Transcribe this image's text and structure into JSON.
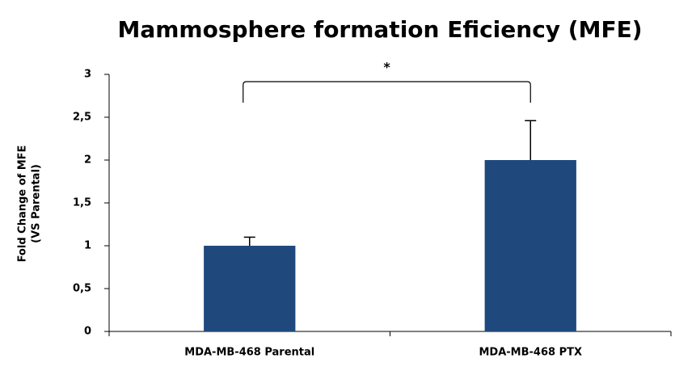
{
  "chart_data": {
    "type": "bar",
    "title": "Mammosphere formation Eficiency (MFE)",
    "ylabel": [
      "Fold Change of MFE",
      "(VS Parental)"
    ],
    "categories": [
      "MDA-MB-468 Parental",
      "MDA-MB-468 PTX"
    ],
    "values": [
      1,
      2
    ],
    "errors": [
      0.1,
      0.46
    ],
    "color": "#1f497d",
    "ylim": [
      0,
      3
    ],
    "yticks": [
      0,
      {
        "value": 0.5,
        "label": "0,5"
      },
      1,
      {
        "value": 1.5,
        "label": "1,5"
      },
      2,
      {
        "value": 2.5,
        "label": "2,5"
      },
      3
    ],
    "annotation": "*"
  }
}
